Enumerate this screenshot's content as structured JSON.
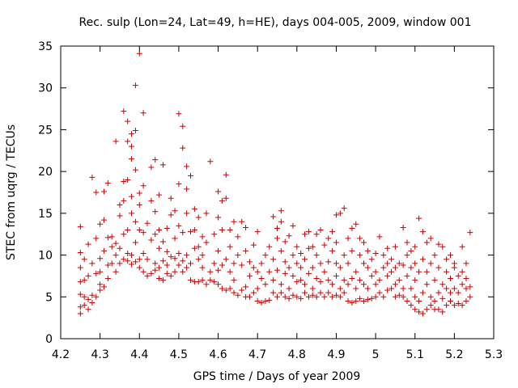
{
  "chart_data": {
    "type": "scatter",
    "title": "Rec. sulp (Lon=24, Lat=49, h=HE), days 004-005, 2009, window 001",
    "xlabel": "GPS time / Days of year 2009",
    "ylabel": "STEC from uqrg / TECUs",
    "xlim": [
      4.2,
      5.3
    ],
    "ylim": [
      0,
      35
    ],
    "xticks": [
      "4.2",
      "4.3",
      "4.4",
      "4.5",
      "4.6",
      "4.7",
      "4.8",
      "4.9",
      "5",
      "5.1",
      "5.2",
      "5.3"
    ],
    "yticks": [
      "0",
      "5",
      "10",
      "15",
      "20",
      "25",
      "30",
      "35"
    ],
    "grid": false,
    "marker": "+",
    "color": "#cc0000",
    "points": [
      [
        4.25,
        3.0
      ],
      [
        4.25,
        3.8
      ],
      [
        4.25,
        5.3
      ],
      [
        4.25,
        6.8
      ],
      [
        4.25,
        8.5
      ],
      [
        4.25,
        10.3
      ],
      [
        4.25,
        13.4
      ],
      [
        4.26,
        4.0
      ],
      [
        4.26,
        5.0
      ],
      [
        4.26,
        7.0
      ],
      [
        4.26,
        9.5
      ],
      [
        4.27,
        3.5
      ],
      [
        4.27,
        4.7
      ],
      [
        4.27,
        7.5
      ],
      [
        4.27,
        11.3
      ],
      [
        4.28,
        4.3
      ],
      [
        4.28,
        5.2
      ],
      [
        4.28,
        9.0
      ],
      [
        4.28,
        19.3
      ],
      [
        4.29,
        5.0
      ],
      [
        4.29,
        7.8
      ],
      [
        4.29,
        12.0
      ],
      [
        4.29,
        17.5
      ],
      [
        4.3,
        5.8
      ],
      [
        4.3,
        6.5
      ],
      [
        4.3,
        8.0
      ],
      [
        4.3,
        9.6
      ],
      [
        4.3,
        13.7
      ],
      [
        4.31,
        6.2
      ],
      [
        4.31,
        10.5
      ],
      [
        4.31,
        17.6
      ],
      [
        4.31,
        14.2
      ],
      [
        4.32,
        7.2
      ],
      [
        4.32,
        8.8
      ],
      [
        4.32,
        12.1
      ],
      [
        4.32,
        18.6
      ],
      [
        4.33,
        9.0
      ],
      [
        4.33,
        11.0
      ],
      [
        4.33,
        12.2
      ],
      [
        4.34,
        8.0
      ],
      [
        4.34,
        10.0
      ],
      [
        4.34,
        11.4
      ],
      [
        4.34,
        23.6
      ],
      [
        4.35,
        9.0
      ],
      [
        4.35,
        10.8
      ],
      [
        4.35,
        14.7
      ],
      [
        4.35,
        16.0
      ],
      [
        4.36,
        9.5
      ],
      [
        4.36,
        12.5
      ],
      [
        4.36,
        16.5
      ],
      [
        4.36,
        18.8
      ],
      [
        4.36,
        27.2
      ],
      [
        4.37,
        9.3
      ],
      [
        4.37,
        10.2
      ],
      [
        4.37,
        13.0
      ],
      [
        4.37,
        19.0
      ],
      [
        4.37,
        23.6
      ],
      [
        4.37,
        26.0
      ],
      [
        4.38,
        8.9
      ],
      [
        4.38,
        10.0
      ],
      [
        4.38,
        15.0
      ],
      [
        4.38,
        17.0
      ],
      [
        4.38,
        21.5
      ],
      [
        4.38,
        23.0
      ],
      [
        4.38,
        24.5
      ],
      [
        4.39,
        9.2
      ],
      [
        4.39,
        11.5
      ],
      [
        4.39,
        14.0
      ],
      [
        4.39,
        20.2
      ],
      [
        4.39,
        30.3
      ],
      [
        4.39,
        24.9
      ],
      [
        4.4,
        8.5
      ],
      [
        4.4,
        9.5
      ],
      [
        4.4,
        13.0
      ],
      [
        4.4,
        16.0
      ],
      [
        4.4,
        17.4
      ],
      [
        4.4,
        34.1
      ],
      [
        4.41,
        8.0
      ],
      [
        4.41,
        10.2
      ],
      [
        4.41,
        12.7
      ],
      [
        4.41,
        18.3
      ],
      [
        4.41,
        27.0
      ],
      [
        4.42,
        7.5
      ],
      [
        4.42,
        9.5
      ],
      [
        4.42,
        13.8
      ],
      [
        4.43,
        7.8
      ],
      [
        4.43,
        11.8
      ],
      [
        4.43,
        16.5
      ],
      [
        4.43,
        20.5
      ],
      [
        4.44,
        8.2
      ],
      [
        4.44,
        9.0
      ],
      [
        4.44,
        12.5
      ],
      [
        4.44,
        15.2
      ],
      [
        4.44,
        21.4
      ],
      [
        4.45,
        7.2
      ],
      [
        4.45,
        8.5
      ],
      [
        4.45,
        10.8
      ],
      [
        4.45,
        13.0
      ],
      [
        4.45,
        17.2
      ],
      [
        4.46,
        7.0
      ],
      [
        4.46,
        9.3
      ],
      [
        4.46,
        11.6
      ],
      [
        4.46,
        20.8
      ],
      [
        4.47,
        7.8
      ],
      [
        4.47,
        8.8
      ],
      [
        4.47,
        10.4
      ],
      [
        4.47,
        13.2
      ],
      [
        4.48,
        7.5
      ],
      [
        4.48,
        9.8
      ],
      [
        4.48,
        14.8
      ],
      [
        4.48,
        16.8
      ],
      [
        4.49,
        8.0
      ],
      [
        4.49,
        9.6
      ],
      [
        4.49,
        12.0
      ],
      [
        4.49,
        15.3
      ],
      [
        4.5,
        8.8
      ],
      [
        4.5,
        10.2
      ],
      [
        4.5,
        13.5
      ],
      [
        4.5,
        18.5
      ],
      [
        4.5,
        26.9
      ],
      [
        4.51,
        8.0
      ],
      [
        4.51,
        9.3
      ],
      [
        4.51,
        12.7
      ],
      [
        4.51,
        22.8
      ],
      [
        4.51,
        25.4
      ],
      [
        4.52,
        8.5
      ],
      [
        4.52,
        10.0
      ],
      [
        4.52,
        15.0
      ],
      [
        4.52,
        17.9
      ],
      [
        4.52,
        20.6
      ],
      [
        4.53,
        7.0
      ],
      [
        4.53,
        9.0
      ],
      [
        4.53,
        12.8
      ],
      [
        4.53,
        19.5
      ],
      [
        4.54,
        6.8
      ],
      [
        4.54,
        10.8
      ],
      [
        4.54,
        13.0
      ],
      [
        4.54,
        15.5
      ],
      [
        4.55,
        6.8
      ],
      [
        4.55,
        9.5
      ],
      [
        4.55,
        11.0
      ],
      [
        4.55,
        14.5
      ],
      [
        4.56,
        7.0
      ],
      [
        4.56,
        8.5
      ],
      [
        4.56,
        10.0
      ],
      [
        4.56,
        12.2
      ],
      [
        4.57,
        6.5
      ],
      [
        4.57,
        11.5
      ],
      [
        4.57,
        15.0
      ],
      [
        4.58,
        8.0
      ],
      [
        4.58,
        7.0
      ],
      [
        4.58,
        21.2
      ],
      [
        4.59,
        6.8
      ],
      [
        4.59,
        9.0
      ],
      [
        4.59,
        12.5
      ],
      [
        4.6,
        6.5
      ],
      [
        4.6,
        8.2
      ],
      [
        4.6,
        10.5
      ],
      [
        4.6,
        14.5
      ],
      [
        4.6,
        17.6
      ],
      [
        4.61,
        6.0
      ],
      [
        4.61,
        8.8
      ],
      [
        4.61,
        13.0
      ],
      [
        4.61,
        16.5
      ],
      [
        4.62,
        5.8
      ],
      [
        4.62,
        9.5
      ],
      [
        4.62,
        16.8
      ],
      [
        4.62,
        19.6
      ],
      [
        4.63,
        6.0
      ],
      [
        4.63,
        8.0
      ],
      [
        4.63,
        11.0
      ],
      [
        4.63,
        13.0
      ],
      [
        4.64,
        5.5
      ],
      [
        4.64,
        7.0
      ],
      [
        4.64,
        9.0
      ],
      [
        4.64,
        14.0
      ],
      [
        4.65,
        5.2
      ],
      [
        4.65,
        10.0
      ],
      [
        4.65,
        12.2
      ],
      [
        4.66,
        5.8
      ],
      [
        4.66,
        8.8
      ],
      [
        4.66,
        14.0
      ],
      [
        4.67,
        5.0
      ],
      [
        4.67,
        6.2
      ],
      [
        4.67,
        10.5
      ],
      [
        4.67,
        13.3
      ],
      [
        4.68,
        5.0
      ],
      [
        4.68,
        7.5
      ],
      [
        4.68,
        9.2
      ],
      [
        4.69,
        5.5
      ],
      [
        4.69,
        8.5
      ],
      [
        4.69,
        11.2
      ],
      [
        4.7,
        4.5
      ],
      [
        4.7,
        6.0
      ],
      [
        4.7,
        8.0
      ],
      [
        4.7,
        12.8
      ],
      [
        4.71,
        4.3
      ],
      [
        4.71,
        7.2
      ],
      [
        4.71,
        9.0
      ],
      [
        4.72,
        4.5
      ],
      [
        4.72,
        6.5
      ],
      [
        4.72,
        10.0
      ],
      [
        4.73,
        4.6
      ],
      [
        4.73,
        8.0
      ],
      [
        4.73,
        11.0
      ],
      [
        4.74,
        5.5
      ],
      [
        4.74,
        7.0
      ],
      [
        4.74,
        9.5
      ],
      [
        4.74,
        14.6
      ],
      [
        4.75,
        5.0
      ],
      [
        4.75,
        8.2
      ],
      [
        4.75,
        12.0
      ],
      [
        4.75,
        13.2
      ],
      [
        4.76,
        5.5
      ],
      [
        4.76,
        6.5
      ],
      [
        4.76,
        10.5
      ],
      [
        4.76,
        14.0
      ],
      [
        4.76,
        15.3
      ],
      [
        4.77,
        5.0
      ],
      [
        4.77,
        7.8
      ],
      [
        4.77,
        9.2
      ],
      [
        4.77,
        11.6
      ],
      [
        4.78,
        4.8
      ],
      [
        4.78,
        6.0
      ],
      [
        4.78,
        8.5
      ],
      [
        4.78,
        12.3
      ],
      [
        4.79,
        5.2
      ],
      [
        4.79,
        7.5
      ],
      [
        4.79,
        10.0
      ],
      [
        4.79,
        13.5
      ],
      [
        4.8,
        5.0
      ],
      [
        4.8,
        6.8
      ],
      [
        4.8,
        9.0
      ],
      [
        4.8,
        11.0
      ],
      [
        4.81,
        4.8
      ],
      [
        4.81,
        7.0
      ],
      [
        4.81,
        8.5
      ],
      [
        4.81,
        10.2
      ],
      [
        4.82,
        5.5
      ],
      [
        4.82,
        6.5
      ],
      [
        4.82,
        9.5
      ],
      [
        4.82,
        12.5
      ],
      [
        4.83,
        5.0
      ],
      [
        4.83,
        7.8
      ],
      [
        4.83,
        10.8
      ],
      [
        4.83,
        12.8
      ],
      [
        4.84,
        5.2
      ],
      [
        4.84,
        6.0
      ],
      [
        4.84,
        8.5
      ],
      [
        4.84,
        11.0
      ],
      [
        4.85,
        5.0
      ],
      [
        4.85,
        7.2
      ],
      [
        4.85,
        10.0
      ],
      [
        4.85,
        12.5
      ],
      [
        4.86,
        5.5
      ],
      [
        4.86,
        6.8
      ],
      [
        4.86,
        9.0
      ],
      [
        4.86,
        13.0
      ],
      [
        4.87,
        5.0
      ],
      [
        4.87,
        8.0
      ],
      [
        4.87,
        11.2
      ],
      [
        4.88,
        5.5
      ],
      [
        4.88,
        7.0
      ],
      [
        4.88,
        9.2
      ],
      [
        4.88,
        12.0
      ],
      [
        4.89,
        5.0
      ],
      [
        4.89,
        6.5
      ],
      [
        4.89,
        10.5
      ],
      [
        4.89,
        12.8
      ],
      [
        4.9,
        5.2
      ],
      [
        4.9,
        7.5
      ],
      [
        4.9,
        9.0
      ],
      [
        4.9,
        11.5
      ],
      [
        4.9,
        14.8
      ],
      [
        4.91,
        5.0
      ],
      [
        4.91,
        6.0
      ],
      [
        4.91,
        8.5
      ],
      [
        4.91,
        15.0
      ],
      [
        4.92,
        5.5
      ],
      [
        4.92,
        7.0
      ],
      [
        4.92,
        10.0
      ],
      [
        4.92,
        15.6
      ],
      [
        4.93,
        4.5
      ],
      [
        4.93,
        6.5
      ],
      [
        4.93,
        9.0
      ],
      [
        4.93,
        12.0
      ],
      [
        4.94,
        4.3
      ],
      [
        4.94,
        7.2
      ],
      [
        4.94,
        10.5
      ],
      [
        4.94,
        13.2
      ],
      [
        4.95,
        4.5
      ],
      [
        4.95,
        6.0
      ],
      [
        4.95,
        8.0
      ],
      [
        4.95,
        13.7
      ],
      [
        4.96,
        4.8
      ],
      [
        4.96,
        7.0
      ],
      [
        4.96,
        10.0
      ],
      [
        4.96,
        12.0
      ],
      [
        4.97,
        4.5
      ],
      [
        4.97,
        6.5
      ],
      [
        4.97,
        9.0
      ],
      [
        4.97,
        11.5
      ],
      [
        4.98,
        4.7
      ],
      [
        4.98,
        6.0
      ],
      [
        4.98,
        8.5
      ],
      [
        4.98,
        10.5
      ],
      [
        4.99,
        4.8
      ],
      [
        4.99,
        7.5
      ],
      [
        4.99,
        9.5
      ],
      [
        5.0,
        5.0
      ],
      [
        5.0,
        6.5
      ],
      [
        5.0,
        8.0
      ],
      [
        5.0,
        10.2
      ],
      [
        5.01,
        5.5
      ],
      [
        5.01,
        7.0
      ],
      [
        5.01,
        12.2
      ],
      [
        5.02,
        5.0
      ],
      [
        5.02,
        8.5
      ],
      [
        5.02,
        10.0
      ],
      [
        5.03,
        5.8
      ],
      [
        5.03,
        7.5
      ],
      [
        5.03,
        9.0
      ],
      [
        5.03,
        10.8
      ],
      [
        5.04,
        6.0
      ],
      [
        5.04,
        8.0
      ],
      [
        5.04,
        9.5
      ],
      [
        5.05,
        5.0
      ],
      [
        5.05,
        6.5
      ],
      [
        5.05,
        8.5
      ],
      [
        5.05,
        11.0
      ],
      [
        5.06,
        5.2
      ],
      [
        5.06,
        7.0
      ],
      [
        5.06,
        9.0
      ],
      [
        5.07,
        5.0
      ],
      [
        5.07,
        6.0
      ],
      [
        5.07,
        8.8
      ],
      [
        5.07,
        13.3
      ],
      [
        5.08,
        4.5
      ],
      [
        5.08,
        7.5
      ],
      [
        5.08,
        10.0
      ],
      [
        5.08,
        11.5
      ],
      [
        5.09,
        4.0
      ],
      [
        5.09,
        6.0
      ],
      [
        5.09,
        8.5
      ],
      [
        5.09,
        10.5
      ],
      [
        5.1,
        3.5
      ],
      [
        5.1,
        5.0
      ],
      [
        5.1,
        7.0
      ],
      [
        5.1,
        9.0
      ],
      [
        5.1,
        11.0
      ],
      [
        5.11,
        3.2
      ],
      [
        5.11,
        4.5
      ],
      [
        5.11,
        8.0
      ],
      [
        5.11,
        14.4
      ],
      [
        5.12,
        3.0
      ],
      [
        5.12,
        5.5
      ],
      [
        5.12,
        9.5
      ],
      [
        5.12,
        12.8
      ],
      [
        5.13,
        3.5
      ],
      [
        5.13,
        6.5
      ],
      [
        5.13,
        8.0
      ],
      [
        5.13,
        11.5
      ],
      [
        5.14,
        4.0
      ],
      [
        5.14,
        5.0
      ],
      [
        5.14,
        9.0
      ],
      [
        5.14,
        12.0
      ],
      [
        5.15,
        3.5
      ],
      [
        5.15,
        4.5
      ],
      [
        5.15,
        7.0
      ],
      [
        5.15,
        10.0
      ],
      [
        5.16,
        3.5
      ],
      [
        5.16,
        5.5
      ],
      [
        5.16,
        8.5
      ],
      [
        5.16,
        11.3
      ],
      [
        5.17,
        3.2
      ],
      [
        5.17,
        4.8
      ],
      [
        5.17,
        6.5
      ],
      [
        5.17,
        11.0
      ],
      [
        5.18,
        4.0
      ],
      [
        5.18,
        6.0
      ],
      [
        5.18,
        8.0
      ],
      [
        5.18,
        9.5
      ],
      [
        5.19,
        4.5
      ],
      [
        5.19,
        5.5
      ],
      [
        5.19,
        7.2
      ],
      [
        5.19,
        10.0
      ],
      [
        5.2,
        4.0
      ],
      [
        5.2,
        6.0
      ],
      [
        5.2,
        8.5
      ],
      [
        5.2,
        9.0
      ],
      [
        5.21,
        4.2
      ],
      [
        5.21,
        5.5
      ],
      [
        5.21,
        7.5
      ],
      [
        5.22,
        4.0
      ],
      [
        5.22,
        6.5
      ],
      [
        5.22,
        8.0
      ],
      [
        5.22,
        11.0
      ],
      [
        5.23,
        4.5
      ],
      [
        5.23,
        6.0
      ],
      [
        5.23,
        7.2
      ],
      [
        5.23,
        9.0
      ],
      [
        5.24,
        5.0
      ],
      [
        5.24,
        6.2
      ],
      [
        5.24,
        12.7
      ]
    ]
  }
}
